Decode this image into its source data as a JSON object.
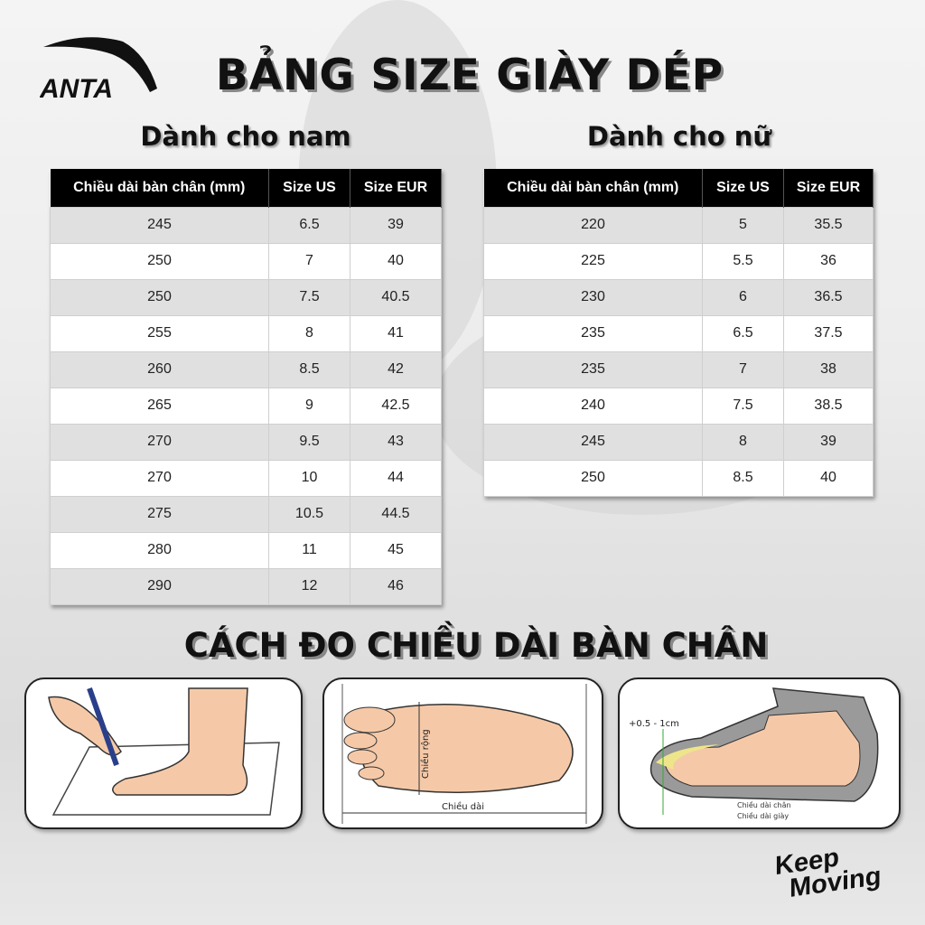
{
  "brand": {
    "logo_text": "ANTA",
    "slogan_line1": "Keep",
    "slogan_line2": "Moving"
  },
  "title": "BẢNG SIZE GIÀY DÉP",
  "men": {
    "heading": "Dành cho nam",
    "columns": [
      "Chiều dài bàn chân (mm)",
      "Size US",
      "Size EUR"
    ],
    "rows": [
      [
        "245",
        "6.5",
        "39"
      ],
      [
        "250",
        "7",
        "40"
      ],
      [
        "250",
        "7.5",
        "40.5"
      ],
      [
        "255",
        "8",
        "41"
      ],
      [
        "260",
        "8.5",
        "42"
      ],
      [
        "265",
        "9",
        "42.5"
      ],
      [
        "270",
        "9.5",
        "43"
      ],
      [
        "270",
        "10",
        "44"
      ],
      [
        "275",
        "10.5",
        "44.5"
      ],
      [
        "280",
        "11",
        "45"
      ],
      [
        "290",
        "12",
        "46"
      ]
    ]
  },
  "women": {
    "heading": "Dành cho nữ",
    "columns": [
      "Chiều dài bàn chân (mm)",
      "Size US",
      "Size EUR"
    ],
    "rows": [
      [
        "220",
        "5",
        "35.5"
      ],
      [
        "225",
        "5.5",
        "36"
      ],
      [
        "230",
        "6",
        "36.5"
      ],
      [
        "235",
        "6.5",
        "37.5"
      ],
      [
        "235",
        "7",
        "38"
      ],
      [
        "240",
        "7.5",
        "38.5"
      ],
      [
        "245",
        "8",
        "39"
      ],
      [
        "250",
        "8.5",
        "40"
      ]
    ]
  },
  "measure": {
    "heading": "CÁCH ĐO CHIỀU DÀI BÀN CHÂN",
    "panel2": {
      "width_label": "Chiều rộng",
      "length_label": "Chiều dài"
    },
    "panel3": {
      "allowance": "+0.5 - 1cm",
      "foot_length": "Chiều dài chân",
      "shoe_length": "Chiều dài giày"
    }
  },
  "colors": {
    "header_bg": "#000000",
    "row_alt": "#e0e0e0",
    "skin": "#f5c9a8",
    "sole": "#9a9a9a",
    "insole": "#eee58a"
  }
}
